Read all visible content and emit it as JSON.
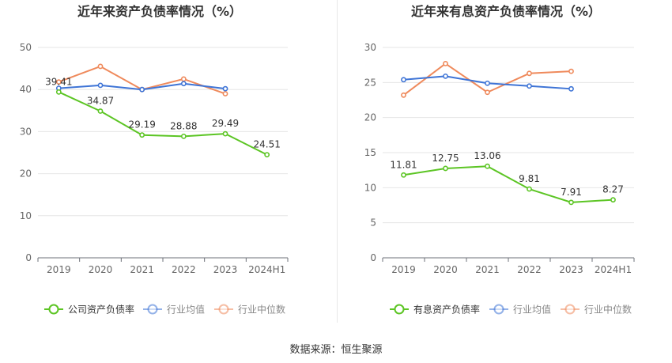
{
  "source_text": "数据来源：恒生聚源",
  "colors": {
    "company": "#5cc524",
    "avg": "#3e74d6",
    "median": "#ef8a5c",
    "grid": "#e6e6e6",
    "axis_text": "#666666",
    "title_text": "#333333"
  },
  "chart_data": [
    {
      "type": "line",
      "title": "近年来资产负债率情况（%）",
      "categories": [
        "2019",
        "2020",
        "2021",
        "2022",
        "2023",
        "2024H1"
      ],
      "ylim": [
        0,
        50
      ],
      "yticks": [
        0,
        10,
        20,
        30,
        40,
        50
      ],
      "grid": true,
      "legend_position": "bottom",
      "series": [
        {
          "name": "公司资产负债率",
          "color_key": "company",
          "labeled": true,
          "values": [
            39.41,
            34.87,
            29.19,
            28.88,
            29.49,
            24.51
          ]
        },
        {
          "name": "行业均值",
          "color_key": "avg",
          "labeled": false,
          "values": [
            40.3,
            41.0,
            40.0,
            41.4,
            40.2,
            null
          ]
        },
        {
          "name": "行业中位数",
          "color_key": "median",
          "labeled": false,
          "values": [
            41.8,
            45.5,
            40.0,
            42.5,
            39.0,
            null
          ]
        }
      ]
    },
    {
      "type": "line",
      "title": "近年来有息资产负债率情况（%）",
      "categories": [
        "2019",
        "2020",
        "2021",
        "2022",
        "2023",
        "2024H1"
      ],
      "ylim": [
        0,
        30
      ],
      "yticks": [
        0,
        5,
        10,
        15,
        20,
        25,
        30
      ],
      "grid": true,
      "legend_position": "bottom",
      "series": [
        {
          "name": "有息资产负债率",
          "color_key": "company",
          "labeled": true,
          "values": [
            11.81,
            12.75,
            13.06,
            9.81,
            7.91,
            8.27
          ]
        },
        {
          "name": "行业均值",
          "color_key": "avg",
          "labeled": false,
          "values": [
            25.4,
            25.9,
            24.9,
            24.5,
            24.1,
            null
          ]
        },
        {
          "name": "行业中位数",
          "color_key": "median",
          "labeled": false,
          "values": [
            23.2,
            27.7,
            23.6,
            26.3,
            26.6,
            null
          ]
        }
      ]
    }
  ]
}
